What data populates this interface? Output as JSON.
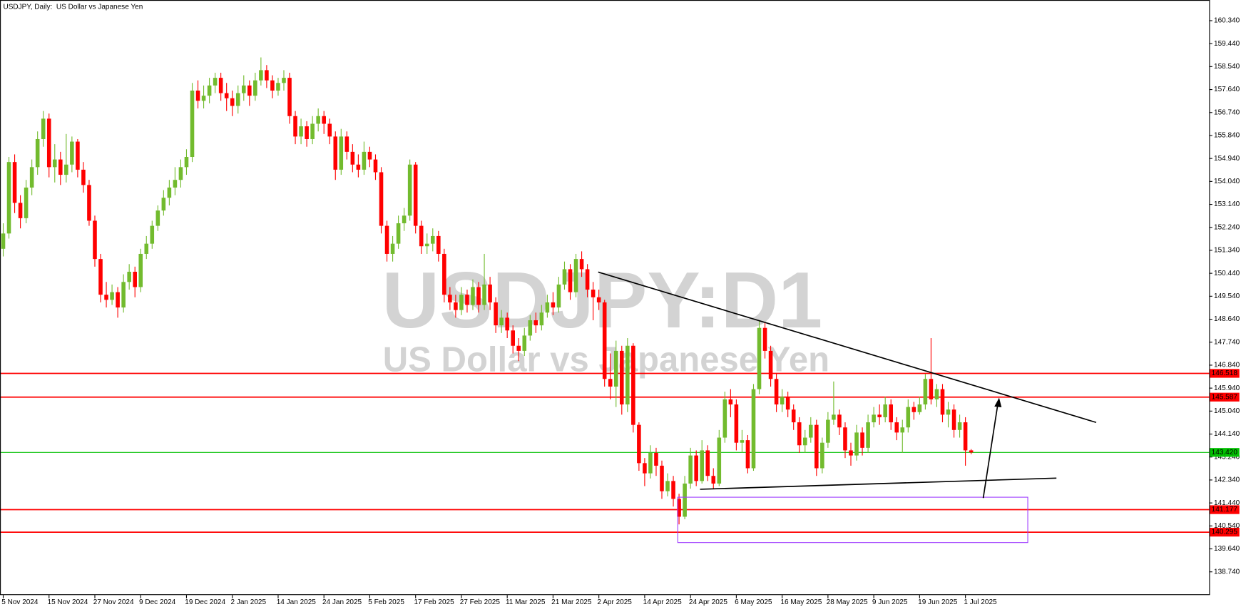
{
  "chart_data": {
    "type": "candlestick",
    "title": "USDJPY, Daily:  US Dollar vs Japanese Yen",
    "watermark": [
      "USDJPY:D1",
      "US Dollar vs Japanese Yen"
    ],
    "up_color": "#72bb2e",
    "down_color": "#ff0000",
    "categories": [
      "5 Nov 2024",
      null,
      null,
      null,
      null,
      null,
      null,
      null,
      "15 Nov 2024",
      null,
      null,
      null,
      null,
      null,
      null,
      null,
      "27 Nov 2024",
      null,
      null,
      null,
      null,
      null,
      null,
      null,
      "9 Dec 2024",
      null,
      null,
      null,
      null,
      null,
      null,
      null,
      "19 Dec 2024",
      null,
      null,
      null,
      null,
      null,
      null,
      null,
      "2 Jan 2025",
      null,
      null,
      null,
      null,
      null,
      null,
      null,
      "14 Jan 2025",
      null,
      null,
      null,
      null,
      null,
      null,
      null,
      "24 Jan 2025",
      null,
      null,
      null,
      null,
      null,
      null,
      null,
      "5 Feb 2025",
      null,
      null,
      null,
      null,
      null,
      null,
      null,
      "17 Feb 2025",
      null,
      null,
      null,
      null,
      null,
      null,
      null,
      "27 Feb 2025",
      null,
      null,
      null,
      null,
      null,
      null,
      null,
      "11 Mar 2025",
      null,
      null,
      null,
      null,
      null,
      null,
      null,
      "21 Mar 2025",
      null,
      null,
      null,
      null,
      null,
      null,
      null,
      "2 Apr 2025",
      null,
      null,
      null,
      null,
      null,
      null,
      null,
      "14 Apr 2025",
      null,
      null,
      null,
      null,
      null,
      null,
      null,
      "24 Apr 2025",
      null,
      null,
      null,
      null,
      null,
      null,
      null,
      "6 May 2025",
      null,
      null,
      null,
      null,
      null,
      null,
      null,
      "16 May 2025",
      null,
      null,
      null,
      null,
      null,
      null,
      null,
      "28 May 2025",
      null,
      null,
      null,
      null,
      null,
      null,
      null,
      "9 Jun 2025",
      null,
      null,
      null,
      null,
      null,
      null,
      null,
      "19 Jun 2025",
      null,
      null,
      null,
      null,
      null,
      null,
      null,
      "1 Jul 2025",
      null
    ],
    "open": [
      151.4,
      152.0,
      154.8,
      153.2,
      152.6,
      153.8,
      154.6,
      155.7,
      156.5,
      154.6,
      154.9,
      154.3,
      154.7,
      155.6,
      154.5,
      153.9,
      152.5,
      151.0,
      149.6,
      149.4,
      149.7,
      149.1,
      150.1,
      150.5,
      149.9,
      151.2,
      151.6,
      152.3,
      152.9,
      153.4,
      153.8,
      154.1,
      154.6,
      155.0,
      157.6,
      157.2,
      157.4,
      157.8,
      158.1,
      157.5,
      157.3,
      157.0,
      157.5,
      157.8,
      157.4,
      158.0,
      158.4,
      158.0,
      157.6,
      157.9,
      158.1,
      156.6,
      155.8,
      156.2,
      155.7,
      156.3,
      156.6,
      156.3,
      155.8,
      154.5,
      155.8,
      155.2,
      154.7,
      154.5,
      155.2,
      154.9,
      154.4,
      152.3,
      151.2,
      151.6,
      152.4,
      152.7,
      154.7,
      152.3,
      151.5,
      151.6,
      151.9,
      151.2,
      149.6,
      149.3,
      149.0,
      149.6,
      149.2,
      149.9,
      149.2,
      150.0,
      149.3,
      148.4,
      148.7,
      148.2,
      147.6,
      147.4,
      148.0,
      148.6,
      148.4,
      148.9,
      149.3,
      149.1,
      150.0,
      150.6,
      149.7,
      151.0,
      150.6,
      149.8,
      149.5,
      149.3,
      146.3,
      146.0,
      147.4,
      145.3,
      147.6,
      144.5,
      143.0,
      142.6,
      143.4,
      142.9,
      141.9,
      142.3,
      141.6,
      140.9,
      142.2,
      143.3,
      142.3,
      143.5,
      142.5,
      142.2,
      144.0,
      145.5,
      145.3,
      143.8,
      143.9,
      142.8,
      145.9,
      148.3,
      147.4,
      146.3,
      145.3,
      145.6,
      145.1,
      144.6,
      143.7,
      144.0,
      144.5,
      142.8,
      143.8,
      144.7,
      144.9,
      144.4,
      143.5,
      143.3,
      144.2,
      143.6,
      144.6,
      144.9,
      144.8,
      145.3,
      144.6,
      144.2,
      144.4,
      145.2,
      145.0,
      145.3,
      146.3,
      145.5,
      145.9,
      144.9,
      145.1,
      144.3,
      144.6,
      143.5
    ],
    "high": [
      152.4,
      155.0,
      155.1,
      153.5,
      154.1,
      154.9,
      156.0,
      156.8,
      156.7,
      155.5,
      155.2,
      155.9,
      155.8,
      155.7,
      154.8,
      154.1,
      152.7,
      151.2,
      150.1,
      150.0,
      149.9,
      150.4,
      150.8,
      150.7,
      151.4,
      151.9,
      152.5,
      153.1,
      153.7,
      154.1,
      154.6,
      154.9,
      155.3,
      157.9,
      158.0,
      157.8,
      158.1,
      158.3,
      158.3,
      157.9,
      157.6,
      157.8,
      158.2,
      158.0,
      158.3,
      158.9,
      158.6,
      158.2,
      158.1,
      158.4,
      158.3,
      156.8,
      156.5,
      156.4,
      156.6,
      156.9,
      156.8,
      156.5,
      156.0,
      156.1,
      156.0,
      155.5,
      155.1,
      155.6,
      155.4,
      155.1,
      154.6,
      152.5,
      151.9,
      152.7,
      153.0,
      154.9,
      154.8,
      152.5,
      152.0,
      152.2,
      152.1,
      151.4,
      149.9,
      149.6,
      149.9,
      149.8,
      150.2,
      150.1,
      151.2,
      150.3,
      149.5,
      149.0,
      148.9,
      148.4,
      147.9,
      148.3,
      148.8,
      148.9,
      149.2,
      149.6,
      149.7,
      150.3,
      150.9,
      150.8,
      151.2,
      151.3,
      150.8,
      150.1,
      149.8,
      149.4,
      147.3,
      147.8,
      147.6,
      147.9,
      147.7,
      144.6,
      143.2,
      143.7,
      143.6,
      143.1,
      142.6,
      142.5,
      141.8,
      142.5,
      143.6,
      143.5,
      143.9,
      143.7,
      142.8,
      144.3,
      145.8,
      145.9,
      145.5,
      144.3,
      144.1,
      146.1,
      148.6,
      148.5,
      147.6,
      146.5,
      145.9,
      145.8,
      145.3,
      144.8,
      144.3,
      144.8,
      144.7,
      144.0,
      145.0,
      146.2,
      145.1,
      144.6,
      143.8,
      144.5,
      144.4,
      144.9,
      145.2,
      145.3,
      145.6,
      145.5,
      144.8,
      144.7,
      145.5,
      145.4,
      145.6,
      146.5,
      147.9,
      146.1,
      146.1,
      145.4,
      145.3,
      144.9,
      144.8,
      143.55
    ],
    "low": [
      151.1,
      151.8,
      152.8,
      152.2,
      152.4,
      153.5,
      154.3,
      155.4,
      154.2,
      154.0,
      153.9,
      154.0,
      154.4,
      154.2,
      153.6,
      152.3,
      150.7,
      149.3,
      149.1,
      149.2,
      148.7,
      148.9,
      149.8,
      149.5,
      149.7,
      151.0,
      151.4,
      152.1,
      152.7,
      153.1,
      153.5,
      153.8,
      154.3,
      154.8,
      156.9,
      156.9,
      157.1,
      157.5,
      157.2,
      156.8,
      156.6,
      156.7,
      157.2,
      157.0,
      157.2,
      157.8,
      157.7,
      157.3,
      157.4,
      157.6,
      156.3,
      155.5,
      155.5,
      155.4,
      155.5,
      156.0,
      155.9,
      155.5,
      154.1,
      154.3,
      154.9,
      154.4,
      154.2,
      154.3,
      154.6,
      154.1,
      152.0,
      150.9,
      150.9,
      151.4,
      152.1,
      152.5,
      152.0,
      151.2,
      151.2,
      151.3,
      150.9,
      149.3,
      149.0,
      148.7,
      148.8,
      148.9,
      149.0,
      148.9,
      149.0,
      149.0,
      148.1,
      148.1,
      147.9,
      147.3,
      147.0,
      147.2,
      147.8,
      148.1,
      148.2,
      148.7,
      148.8,
      148.9,
      149.8,
      149.4,
      149.5,
      150.3,
      149.5,
      148.6,
      149.0,
      146.0,
      145.5,
      145.2,
      144.9,
      145.0,
      144.2,
      142.7,
      142.1,
      142.4,
      142.5,
      141.6,
      141.7,
      141.3,
      140.6,
      140.8,
      142.0,
      142.1,
      142.2,
      142.3,
      142.0,
      142.1,
      143.8,
      144.8,
      143.5,
      143.4,
      142.6,
      142.7,
      145.7,
      147.1,
      146.0,
      145.0,
      145.0,
      144.8,
      144.3,
      143.4,
      143.4,
      143.8,
      142.5,
      142.6,
      143.6,
      144.5,
      144.1,
      143.2,
      142.9,
      143.1,
      143.3,
      143.4,
      144.4,
      144.5,
      144.6,
      144.3,
      143.9,
      143.4,
      144.2,
      144.7,
      144.9,
      145.1,
      145.3,
      145.2,
      144.6,
      144.4,
      144.0,
      144.0,
      142.9,
      143.35
    ],
    "close": [
      152.0,
      154.8,
      153.2,
      152.6,
      153.8,
      154.6,
      155.7,
      156.5,
      154.6,
      154.9,
      154.3,
      154.7,
      155.6,
      154.5,
      153.9,
      152.5,
      151.0,
      149.6,
      149.4,
      149.7,
      149.1,
      150.1,
      150.5,
      149.9,
      151.2,
      151.6,
      152.3,
      152.9,
      153.4,
      153.8,
      154.1,
      154.6,
      155.0,
      157.6,
      157.2,
      157.4,
      157.8,
      158.1,
      157.5,
      157.3,
      157.0,
      157.5,
      157.8,
      157.4,
      158.0,
      158.4,
      158.0,
      157.6,
      157.9,
      158.1,
      156.6,
      155.8,
      156.2,
      155.7,
      156.3,
      156.6,
      156.3,
      155.8,
      154.5,
      155.8,
      155.2,
      154.7,
      154.5,
      155.2,
      154.9,
      154.4,
      152.3,
      151.2,
      151.6,
      152.4,
      152.7,
      154.7,
      152.3,
      151.5,
      151.6,
      151.9,
      151.2,
      149.6,
      149.3,
      149.0,
      149.6,
      149.2,
      149.9,
      149.2,
      150.0,
      149.3,
      148.4,
      148.7,
      148.2,
      147.6,
      147.4,
      148.0,
      148.6,
      148.4,
      148.9,
      149.3,
      149.1,
      150.0,
      150.6,
      149.7,
      151.0,
      150.6,
      149.8,
      149.5,
      149.3,
      146.3,
      146.0,
      147.4,
      145.3,
      147.6,
      144.5,
      143.0,
      142.6,
      143.4,
      142.9,
      141.9,
      142.3,
      141.6,
      140.9,
      142.2,
      143.3,
      142.3,
      143.5,
      142.5,
      142.2,
      144.0,
      145.5,
      145.3,
      143.8,
      143.9,
      142.8,
      145.9,
      148.3,
      147.4,
      146.3,
      145.3,
      145.6,
      145.1,
      144.6,
      143.7,
      144.0,
      144.5,
      142.8,
      143.8,
      144.7,
      144.9,
      144.4,
      143.5,
      143.3,
      144.2,
      143.6,
      144.6,
      144.9,
      144.8,
      145.3,
      144.6,
      144.2,
      144.4,
      145.2,
      145.0,
      145.3,
      146.3,
      145.5,
      145.9,
      144.9,
      145.1,
      144.3,
      144.6,
      143.5,
      143.42
    ],
    "ylim": [
      137.83,
      161.15
    ],
    "yticks": [
      {
        "value": 160.34,
        "label": "160.340"
      },
      {
        "value": 159.44,
        "label": "159.440"
      },
      {
        "value": 158.54,
        "label": "158.540"
      },
      {
        "value": 157.64,
        "label": "157.640"
      },
      {
        "value": 156.74,
        "label": "156.740"
      },
      {
        "value": 155.84,
        "label": "155.840"
      },
      {
        "value": 154.94,
        "label": "154.940"
      },
      {
        "value": 154.04,
        "label": "154.040"
      },
      {
        "value": 153.14,
        "label": "153.140"
      },
      {
        "value": 152.24,
        "label": "152.240"
      },
      {
        "value": 151.34,
        "label": "151.340"
      },
      {
        "value": 150.44,
        "label": "150.440"
      },
      {
        "value": 149.54,
        "label": "149.540"
      },
      {
        "value": 148.64,
        "label": "148.640"
      },
      {
        "value": 147.74,
        "label": "147.740"
      },
      {
        "value": 146.84,
        "label": "146.840"
      },
      {
        "value": 145.94,
        "label": "145.940"
      },
      {
        "value": 145.04,
        "label": "145.040"
      },
      {
        "value": 144.14,
        "label": "144.140"
      },
      {
        "value": 143.24,
        "label": "143.240"
      },
      {
        "value": 142.34,
        "label": "142.340"
      },
      {
        "value": 141.44,
        "label": "141.440"
      },
      {
        "value": 140.54,
        "label": "140.540"
      },
      {
        "value": 139.64,
        "label": "139.640"
      },
      {
        "value": 138.74,
        "label": "138.740"
      }
    ],
    "levels": [
      {
        "value": 146.518,
        "color": "#ff0000"
      },
      {
        "value": 145.587,
        "color": "#ff0000"
      },
      {
        "value": 143.42,
        "label": "143.420",
        "color": "#00c000"
      },
      {
        "value": 141.177,
        "color": "#ff0000"
      },
      {
        "value": 140.295,
        "color": "#ff0000"
      }
    ]
  }
}
